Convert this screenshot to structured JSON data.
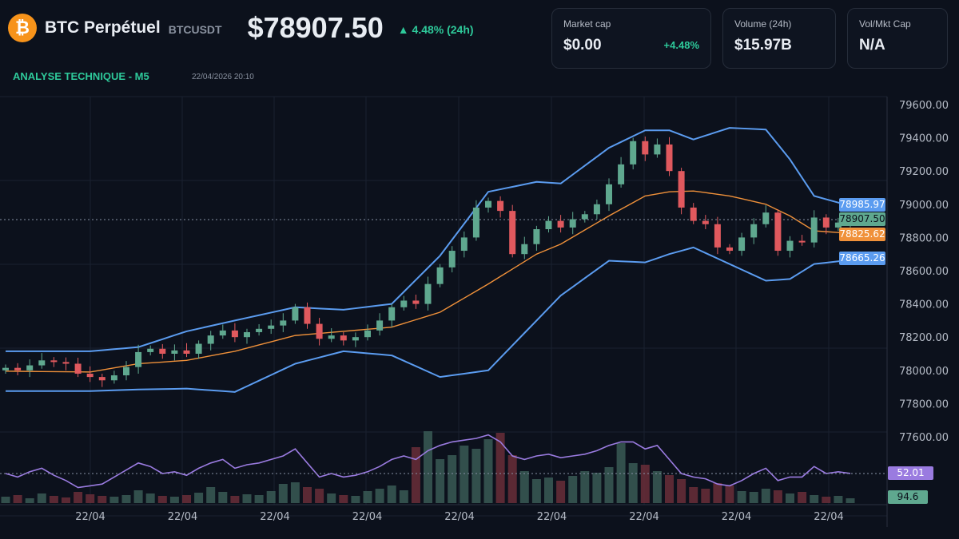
{
  "header": {
    "logo": "bitcoin-icon",
    "title": "BTC Perpétuel",
    "symbol": "BTCUSDT",
    "price": "$78907.50",
    "change": "▲ 4.48% (24h)",
    "section": "ANALYSE TECHNIQUE - M5",
    "datetime": "22/04/2026 20:10"
  },
  "cards": [
    {
      "label": "Market cap",
      "value": "$0.00",
      "change": "+4.48%"
    },
    {
      "label": "Volume (24h)",
      "value": "$15.97B"
    },
    {
      "label": "Vol/Mkt Cap",
      "value": "N/A"
    }
  ],
  "tags": {
    "upper": "78985.97",
    "last": "78907.50",
    "middle": "78825.62",
    "lower": "78665.26",
    "rsi": "52.01",
    "volume": "94.6"
  },
  "colors": {
    "up": "#5fa88f",
    "down": "#e0595e",
    "band": "#5b9cf0",
    "ma": "#f0913a",
    "rsi": "#9a7be0",
    "bg": "#0c111c"
  },
  "chart_data": {
    "type": "candlestick",
    "y_ticks": [
      "79600.00",
      "79400.00",
      "79200.00",
      "79000.00",
      "78800.00",
      "78600.00",
      "78400.00",
      "78200.00",
      "78000.00",
      "77800.00",
      "77600.00"
    ],
    "ylim": [
      77600,
      79600
    ],
    "x_ticks": [
      "22/04",
      "22/04",
      "22/04",
      "22/04",
      "22/04",
      "22/04",
      "22/04",
      "22/04",
      "22/04"
    ],
    "close": [
      78015,
      78000,
      78030,
      78060,
      78050,
      78040,
      77980,
      77960,
      77940,
      77970,
      78020,
      78110,
      78130,
      78100,
      78120,
      78100,
      78160,
      78210,
      78240,
      78200,
      78230,
      78250,
      78270,
      78300,
      78380,
      78280,
      78190,
      78210,
      78180,
      78200,
      78240,
      78300,
      78380,
      78420,
      78400,
      78520,
      78620,
      78720,
      78800,
      78980,
      79020,
      78960,
      78700,
      78760,
      78850,
      78900,
      78860,
      78910,
      78940,
      79000,
      79120,
      79240,
      79380,
      79300,
      79360,
      79200,
      78980,
      78900,
      78880,
      78740,
      78720,
      78800,
      78880,
      78950,
      78720,
      78780,
      78770,
      78920,
      78860,
      78890,
      78907.5
    ],
    "volume": [
      8,
      10,
      6,
      12,
      9,
      7,
      14,
      11,
      9,
      8,
      10,
      16,
      12,
      9,
      8,
      10,
      13,
      20,
      14,
      9,
      11,
      10,
      15,
      24,
      26,
      20,
      18,
      12,
      10,
      9,
      15,
      18,
      22,
      16,
      70,
      90,
      55,
      60,
      72,
      68,
      80,
      88,
      60,
      40,
      30,
      32,
      28,
      34,
      40,
      38,
      45,
      75,
      50,
      48,
      40,
      35,
      30,
      20,
      18,
      25,
      22,
      15,
      14,
      18,
      16,
      12,
      14,
      10,
      8,
      9,
      6
    ],
    "rsi": [
      52,
      50,
      53,
      55,
      51,
      48,
      44,
      45,
      46,
      50,
      54,
      58,
      56,
      52,
      53,
      51,
      55,
      58,
      60,
      55,
      57,
      58,
      60,
      62,
      66,
      58,
      50,
      52,
      50,
      51,
      53,
      56,
      60,
      62,
      60,
      65,
      68,
      70,
      71,
      72,
      74,
      70,
      62,
      60,
      62,
      63,
      61,
      62,
      63,
      65,
      68,
      70,
      70,
      66,
      68,
      60,
      52,
      50,
      49,
      46,
      45,
      48,
      52,
      55,
      48,
      50,
      50,
      56,
      52,
      53,
      52.01
    ],
    "bollinger": {
      "index": [
        0,
        7,
        11,
        15,
        19,
        24,
        28,
        32,
        36,
        40,
        44,
        46,
        50,
        53,
        55,
        57,
        60,
        63,
        65,
        67,
        70
      ],
      "upper": [
        78115,
        78115,
        78140,
        78235,
        78300,
        78380,
        78365,
        78400,
        78690,
        79075,
        79135,
        79125,
        79340,
        79445,
        79445,
        79390,
        79460,
        79450,
        79270,
        79050,
        78990
      ],
      "middle": [
        77995,
        77990,
        78040,
        78060,
        78115,
        78210,
        78235,
        78260,
        78350,
        78520,
        78700,
        78760,
        78930,
        79050,
        79075,
        79080,
        79050,
        79000,
        78930,
        78840,
        78825
      ],
      "lower": [
        77875,
        77875,
        77885,
        77890,
        77870,
        78040,
        78115,
        78090,
        77960,
        78000,
        78300,
        78450,
        78660,
        78650,
        78700,
        78740,
        78640,
        78540,
        78550,
        78640,
        78665
      ]
    }
  }
}
